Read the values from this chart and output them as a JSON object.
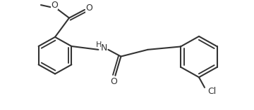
{
  "bg_color": "#ffffff",
  "line_color": "#333333",
  "line_width": 1.5,
  "font_size": 8.5,
  "figsize": [
    3.6,
    1.57
  ],
  "dpi": 100,
  "xlim": [
    0,
    360
  ],
  "ylim": [
    0,
    157
  ]
}
